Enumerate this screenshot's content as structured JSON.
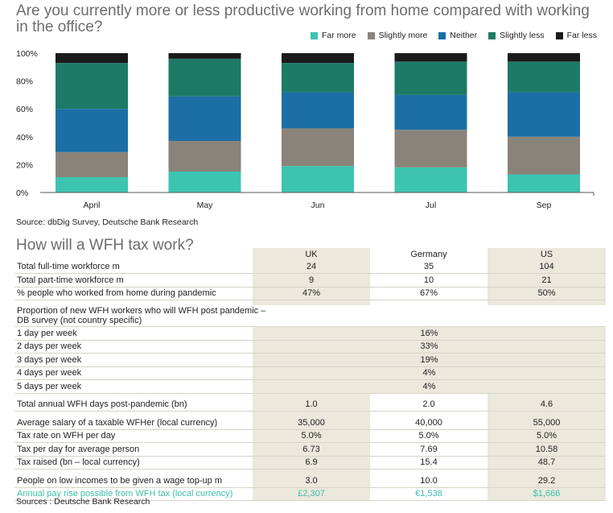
{
  "chart_data": {
    "type": "bar",
    "stacked": true,
    "title": "Are you currently more or less productive working from home compared with working in the office?",
    "categories": [
      "April",
      "May",
      "Jun",
      "Jul",
      "Sep"
    ],
    "y_ticks": [
      "0%",
      "20%",
      "40%",
      "60%",
      "80%",
      "100%"
    ],
    "ylim": [
      0,
      100
    ],
    "legend_placement": "top-right",
    "grid": false,
    "series": [
      {
        "name": "Far more",
        "color": "#3cc4b1",
        "values": [
          11,
          15,
          19,
          18,
          13
        ]
      },
      {
        "name": "Slightly more",
        "color": "#8a8379",
        "values": [
          18,
          22,
          27,
          27,
          27
        ]
      },
      {
        "name": "Neither",
        "color": "#1c6fa5",
        "values": [
          31,
          32,
          26,
          25,
          32
        ]
      },
      {
        "name": "Slightly less",
        "color": "#1d7a67",
        "values": [
          33,
          27,
          21,
          24,
          22
        ]
      },
      {
        "name": "Far less",
        "color": "#1a1a1a",
        "values": [
          7,
          4,
          7,
          6,
          6
        ]
      }
    ],
    "source": "Source: dbDig Survey, Deutsche Bank Research"
  },
  "table": {
    "title": "How will a WFH tax work?",
    "columns": [
      "UK",
      "Germany",
      "US"
    ],
    "group1": [
      {
        "label": "Total full-time workforce m",
        "values": [
          "24",
          "35",
          "104"
        ]
      },
      {
        "label": "Total part-time workforce m",
        "values": [
          "9",
          "10",
          "21"
        ]
      },
      {
        "label": "% people who worked from home during pandemic",
        "values": [
          "47%",
          "67%",
          "50%"
        ]
      }
    ],
    "proportion_header": "Proportion of new WFH workers who will WFH post pandemic – DB survey (not country specific)",
    "days": [
      {
        "label": "1 day per week",
        "value": "16%"
      },
      {
        "label": "2 days per week",
        "value": "33%"
      },
      {
        "label": "3 days per week",
        "value": "19%"
      },
      {
        "label": "4 days per week",
        "value": "4%"
      },
      {
        "label": "5 days per week",
        "value": "4%"
      }
    ],
    "total_days": {
      "label": "Total annual WFH days post-pandemic (bn)",
      "values": [
        "1.0",
        "2.0",
        "4.6"
      ]
    },
    "group2": [
      {
        "label": "Average salary of a taxable WFHer (local currency)",
        "values": [
          "35,000",
          "40,000",
          "55,000"
        ]
      },
      {
        "label": "Tax rate on WFH per day",
        "values": [
          "5.0%",
          "5.0%",
          "5.0%"
        ]
      },
      {
        "label": "Tax per day for average person",
        "values": [
          "6.73",
          "7.69",
          "10.58"
        ]
      },
      {
        "label": "Tax raised (bn – local currency)",
        "values": [
          "6.9",
          "15.4",
          "48.7"
        ]
      }
    ],
    "low_incomes": {
      "label": "People on low incomes to be given a wage top-up m",
      "values": [
        "3.0",
        "10.0",
        "29.2"
      ]
    },
    "pay_rise": {
      "label": "Annual pay rise possible from WFH tax (local currency)",
      "values": [
        "£2,307",
        "€1,538",
        "$1,666"
      ]
    },
    "source": "Sources : Deutsche Bank Research"
  }
}
